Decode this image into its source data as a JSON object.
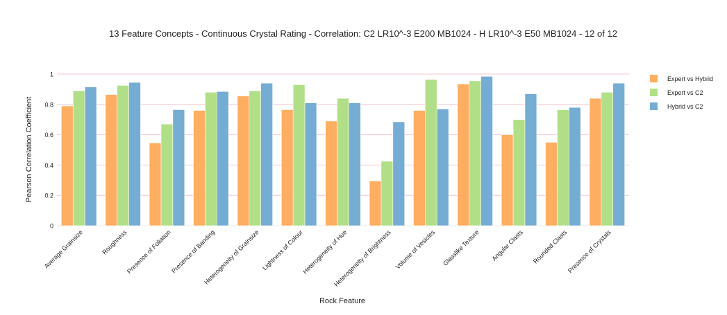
{
  "chart_data": {
    "type": "bar",
    "title": "13 Feature Concepts - Continuous Crystal Rating - Correlation: C2 LR10^-3 E200 MB1024 - H LR10^-3 E50 MB1024 - 12 of 12",
    "xlabel": "Rock Feature",
    "ylabel": "Pearson Correlation Coefficient",
    "ylim": [
      0,
      1
    ],
    "yticks": [
      "0",
      "0.2",
      "0.4",
      "0.6",
      "0.8",
      "1"
    ],
    "grid": true,
    "legend_position": "right",
    "categories": [
      "Average Grainsize",
      "Roughness",
      "Presence of Foliation",
      "Presence of Banding",
      "Heterogeneity of Grainsize",
      "Lightness of Colour",
      "Heterogeneity of Hue",
      "Heterogeneity of Brightness",
      "Volume of Vesicles",
      "Glasslike Texture",
      "Angular Clasts",
      "Rounded Clasts",
      "Presence of Crystals"
    ],
    "series": [
      {
        "name": "Expert vs Hybrid",
        "color": "#fdae61",
        "values": [
          0.79,
          0.865,
          0.545,
          0.76,
          0.855,
          0.765,
          0.69,
          0.295,
          0.76,
          0.935,
          0.6,
          0.55,
          0.84
        ]
      },
      {
        "name": "Expert vs C2",
        "color": "#b1df88",
        "values": [
          0.89,
          0.925,
          0.67,
          0.88,
          0.89,
          0.93,
          0.84,
          0.425,
          0.965,
          0.955,
          0.7,
          0.765,
          0.88
        ]
      },
      {
        "name": "Hybrid vs C2",
        "color": "#75acd3",
        "values": [
          0.915,
          0.945,
          0.765,
          0.885,
          0.94,
          0.81,
          0.81,
          0.685,
          0.77,
          0.985,
          0.87,
          0.78,
          0.94
        ]
      }
    ]
  }
}
